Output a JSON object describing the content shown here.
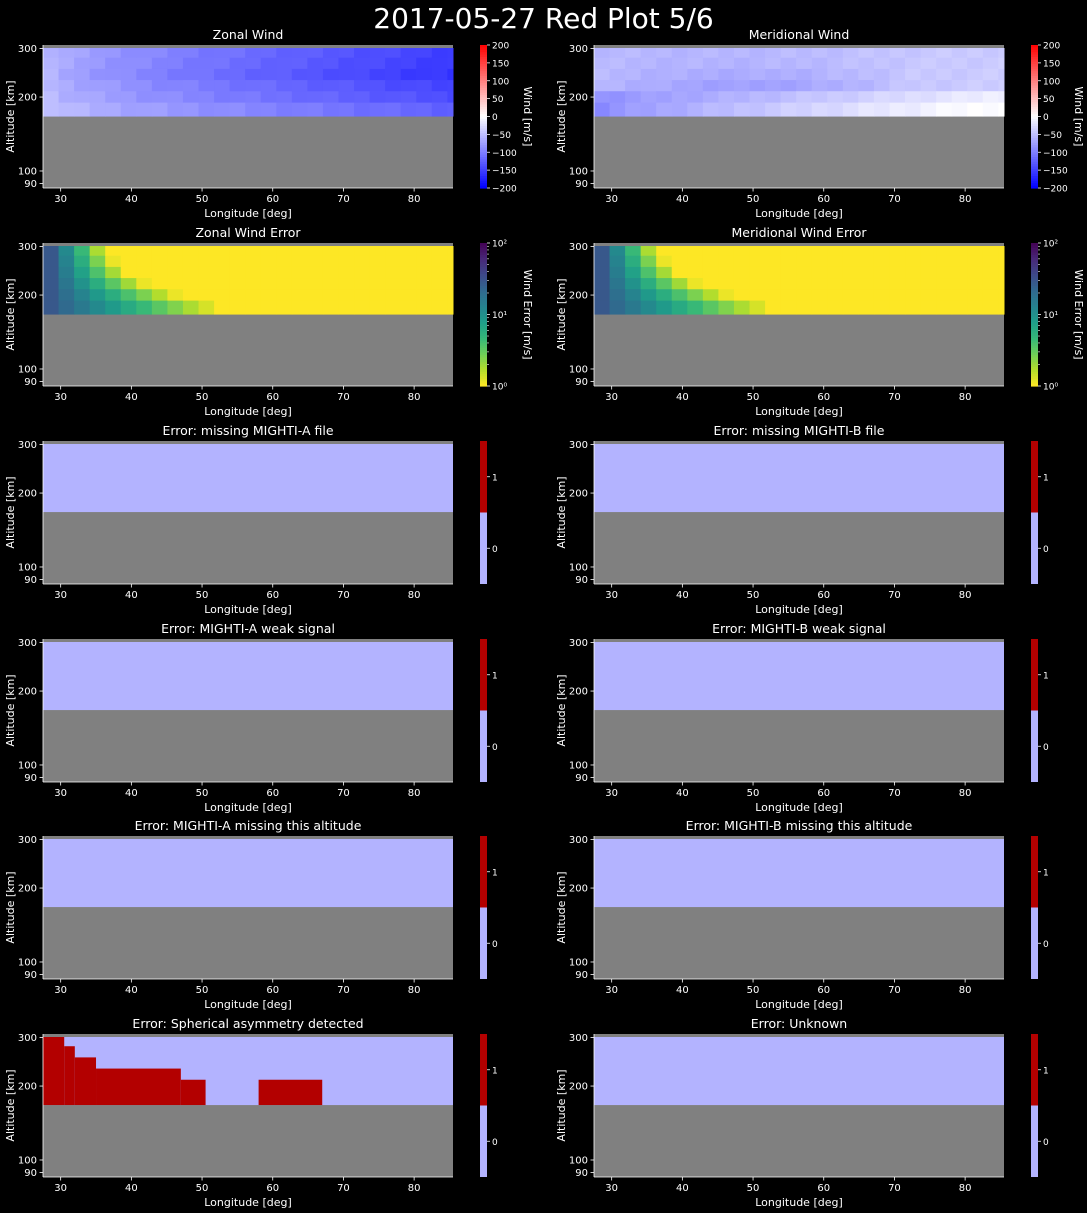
{
  "figure_title": "2017-05-27 Red Plot 5/6",
  "colors": {
    "background": "#000000",
    "no_data": "#808080",
    "flag_off": "#b3b3ff",
    "flag_on": "#b30000",
    "wind_neg": "#0000ff",
    "wind_mid": "#ffffff",
    "wind_pos": "#ff0000",
    "error_low": "#fde725",
    "error_mid": "#21918c",
    "error_high": "#440154"
  },
  "chart_data": [
    {
      "type": "heatmap",
      "title": "Zonal Wind",
      "xlabel": "Longitude [deg]",
      "ylabel": "Altitude [km]",
      "colorbar_label": "Wind [m/s]",
      "colormap": "bwr",
      "xlim": [
        27.5,
        85.5
      ],
      "xticks": [
        30,
        40,
        50,
        60,
        70,
        80
      ],
      "ylim": [
        85,
        310
      ],
      "yticks": [
        90,
        100,
        200,
        300
      ],
      "clim": [
        -200,
        200
      ],
      "cbar_ticks": [
        200,
        150,
        100,
        50,
        0,
        -50,
        -100,
        -150,
        -200
      ],
      "data_altitude_range_km": [
        170,
        301
      ],
      "values_range_m_s": [
        -165,
        -55
      ]
    },
    {
      "type": "heatmap",
      "title": "Meridional Wind",
      "xlabel": "Longitude [deg]",
      "ylabel": "Altitude [km]",
      "colorbar_label": "Wind [m/s]",
      "colormap": "bwr",
      "xlim": [
        27.5,
        85.5
      ],
      "xticks": [
        30,
        40,
        50,
        60,
        70,
        80
      ],
      "ylim": [
        85,
        310
      ],
      "yticks": [
        90,
        100,
        200,
        300
      ],
      "clim": [
        -200,
        200
      ],
      "cbar_ticks": [
        200,
        150,
        100,
        50,
        0,
        -50,
        -100,
        -150,
        -200
      ],
      "data_altitude_range_km": [
        170,
        301
      ],
      "values_range_m_s": [
        -90,
        0
      ]
    },
    {
      "type": "heatmap",
      "title": "Zonal Wind Error",
      "xlabel": "Longitude [deg]",
      "ylabel": "Altitude [km]",
      "colorbar_label": "Wind Error [m/s]",
      "colormap": "viridis_r (log)",
      "xlim": [
        27.5,
        85.5
      ],
      "xticks": [
        30,
        40,
        50,
        60,
        70,
        80
      ],
      "ylim": [
        85,
        310
      ],
      "yticks": [
        90,
        100,
        200,
        300
      ],
      "clim": [
        1,
        100
      ],
      "cbar_ticks": [
        "10²",
        "10¹",
        "10⁰"
      ],
      "data_altitude_range_km": [
        170,
        301
      ],
      "values_range_m_s": [
        1,
        30
      ]
    },
    {
      "type": "heatmap",
      "title": "Meridional Wind Error",
      "xlabel": "Longitude [deg]",
      "ylabel": "Altitude [km]",
      "colorbar_label": "Wind Error [m/s]",
      "colormap": "viridis_r (log)",
      "xlim": [
        27.5,
        85.5
      ],
      "xticks": [
        30,
        40,
        50,
        60,
        70,
        80
      ],
      "ylim": [
        85,
        310
      ],
      "yticks": [
        90,
        100,
        200,
        300
      ],
      "clim": [
        1,
        100
      ],
      "cbar_ticks": [
        "10²",
        "10¹",
        "10⁰"
      ],
      "data_altitude_range_km": [
        170,
        301
      ],
      "values_range_m_s": [
        1,
        30
      ]
    },
    {
      "type": "heatmap",
      "title": "Error: missing MIGHTI-A file",
      "xlabel": "Longitude [deg]",
      "ylabel": "Altitude [km]",
      "xlim": [
        27.5,
        85.5
      ],
      "xticks": [
        30,
        40,
        50,
        60,
        70,
        80
      ],
      "ylim": [
        85,
        310
      ],
      "yticks": [
        90,
        100,
        200,
        300
      ],
      "cbar_ticks": [
        "1",
        "0"
      ],
      "flag_value": 0
    },
    {
      "type": "heatmap",
      "title": "Error: missing MIGHTI-B file",
      "xlabel": "Longitude [deg]",
      "ylabel": "Altitude [km]",
      "xlim": [
        27.5,
        85.5
      ],
      "xticks": [
        30,
        40,
        50,
        60,
        70,
        80
      ],
      "ylim": [
        85,
        310
      ],
      "yticks": [
        90,
        100,
        200,
        300
      ],
      "cbar_ticks": [
        "1",
        "0"
      ],
      "flag_value": 0
    },
    {
      "type": "heatmap",
      "title": "Error: MIGHTI-A weak signal",
      "xlabel": "Longitude [deg]",
      "ylabel": "Altitude [km]",
      "xlim": [
        27.5,
        85.5
      ],
      "xticks": [
        30,
        40,
        50,
        60,
        70,
        80
      ],
      "ylim": [
        85,
        310
      ],
      "yticks": [
        90,
        100,
        200,
        300
      ],
      "cbar_ticks": [
        "1",
        "0"
      ],
      "flag_value": 0
    },
    {
      "type": "heatmap",
      "title": "Error: MIGHTI-B weak signal",
      "xlabel": "Longitude [deg]",
      "ylabel": "Altitude [km]",
      "xlim": [
        27.5,
        85.5
      ],
      "xticks": [
        30,
        40,
        50,
        60,
        70,
        80
      ],
      "ylim": [
        85,
        310
      ],
      "yticks": [
        90,
        100,
        200,
        300
      ],
      "cbar_ticks": [
        "1",
        "0"
      ],
      "flag_value": 0
    },
    {
      "type": "heatmap",
      "title": "Error: MIGHTI-A missing this altitude",
      "xlabel": "Longitude [deg]",
      "ylabel": "Altitude [km]",
      "xlim": [
        27.5,
        85.5
      ],
      "xticks": [
        30,
        40,
        50,
        60,
        70,
        80
      ],
      "ylim": [
        85,
        310
      ],
      "yticks": [
        90,
        100,
        200,
        300
      ],
      "cbar_ticks": [
        "1",
        "0"
      ],
      "flag_value": 0
    },
    {
      "type": "heatmap",
      "title": "Error: MIGHTI-B missing this altitude",
      "xlabel": "Longitude [deg]",
      "ylabel": "Altitude [km]",
      "xlim": [
        27.5,
        85.5
      ],
      "xticks": [
        30,
        40,
        50,
        60,
        70,
        80
      ],
      "ylim": [
        85,
        310
      ],
      "yticks": [
        90,
        100,
        200,
        300
      ],
      "cbar_ticks": [
        "1",
        "0"
      ],
      "flag_value": 0
    },
    {
      "type": "heatmap",
      "title": "Error: Spherical asymmetry detected",
      "xlabel": "Longitude [deg]",
      "ylabel": "Altitude [km]",
      "xlim": [
        27.5,
        85.5
      ],
      "xticks": [
        30,
        40,
        50,
        60,
        70,
        80
      ],
      "ylim": [
        85,
        310
      ],
      "yticks": [
        90,
        100,
        200,
        300
      ],
      "cbar_ticks": [
        "1",
        "0"
      ],
      "flag_value": 0,
      "flagged_regions": [
        {
          "lon": [
            27.5,
            30.5
          ],
          "alt": [
            170,
            301
          ]
        },
        {
          "lon": [
            30.5,
            32
          ],
          "alt": [
            170,
            282
          ]
        },
        {
          "lon": [
            32,
            35
          ],
          "alt": [
            170,
            259
          ]
        },
        {
          "lon": [
            35,
            47
          ],
          "alt": [
            170,
            236
          ]
        },
        {
          "lon": [
            47,
            50.5
          ],
          "alt": [
            170,
            213
          ]
        },
        {
          "lon": [
            58,
            67
          ],
          "alt": [
            170,
            213
          ]
        }
      ]
    },
    {
      "type": "heatmap",
      "title": "Error: Unknown",
      "xlabel": "Longitude [deg]",
      "ylabel": "Altitude [km]",
      "xlim": [
        27.5,
        85.5
      ],
      "xticks": [
        30,
        40,
        50,
        60,
        70,
        80
      ],
      "ylim": [
        85,
        310
      ],
      "yticks": [
        90,
        100,
        200,
        300
      ],
      "cbar_ticks": [
        "1",
        "0"
      ],
      "flag_value": 0
    }
  ]
}
